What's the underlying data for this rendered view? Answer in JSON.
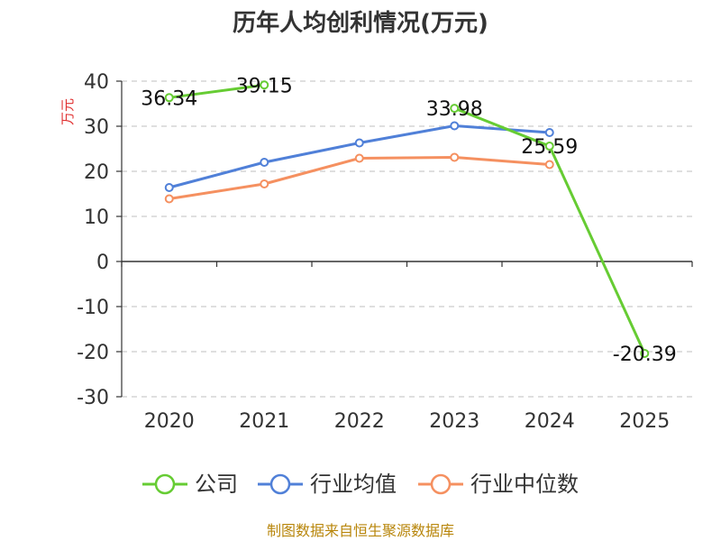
{
  "chart_data": {
    "type": "line",
    "title": "历年人均创利情况(万元)",
    "ylabel": "万元",
    "categories": [
      "2020",
      "2021",
      "2022",
      "2023",
      "2024",
      "2025"
    ],
    "yticks": [
      "40",
      "30",
      "20",
      "10",
      "0",
      "-10",
      "-20",
      "-30"
    ],
    "ylim": [
      -30,
      40
    ],
    "grid": true,
    "legend_position": "bottom",
    "series": [
      {
        "name": "公司",
        "color": "#66cc33",
        "values": [
          36.34,
          39.15,
          null,
          33.98,
          25.59,
          -20.39
        ],
        "labels": [
          "36.34",
          "39.15",
          "",
          "33.98",
          "25.59",
          "-20.39"
        ]
      },
      {
        "name": "行业均值",
        "color": "#5080d8",
        "values": [
          16.4,
          22.0,
          26.3,
          30.1,
          28.6,
          null
        ]
      },
      {
        "name": "行业中位数",
        "color": "#f59060",
        "values": [
          13.9,
          17.2,
          22.9,
          23.1,
          21.5,
          null
        ]
      }
    ],
    "source": "制图数据来自恒生聚源数据库"
  }
}
